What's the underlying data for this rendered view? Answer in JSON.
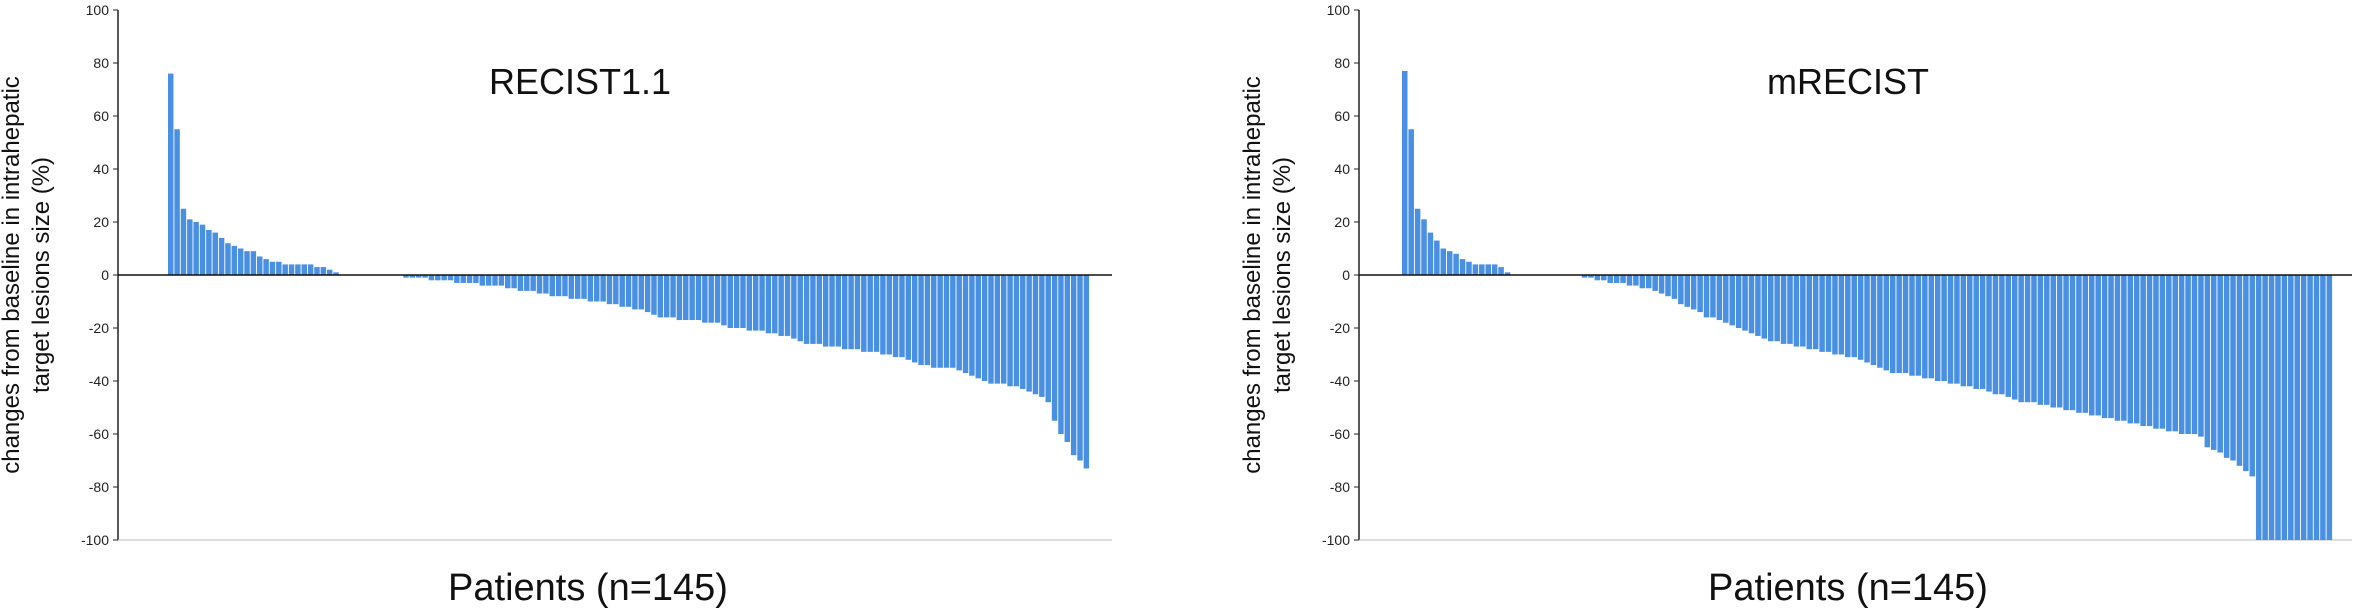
{
  "colors": {
    "bar": "#4a90e2",
    "bar_stroke": "#3a7bd5",
    "axis": "#222222",
    "baseline": "#111111"
  },
  "chart_data": [
    {
      "type": "bar",
      "title": "RECIST1.1",
      "xlabel": "Patients (n=145)",
      "ylabel_lines": [
        "changes from baseline in intrahepatic",
        "target lesions size   (%)"
      ],
      "ylim": [
        -100,
        100
      ],
      "yticks": [
        100,
        80,
        60,
        40,
        20,
        0,
        -20,
        -40,
        -60,
        -80,
        -100
      ],
      "grid": false,
      "n": 145,
      "values": [
        76,
        55,
        25,
        21,
        20,
        19,
        17,
        16,
        14,
        12,
        11,
        10,
        9,
        9,
        7,
        6,
        5,
        5,
        4,
        4,
        4,
        4,
        4,
        3,
        3,
        2,
        1,
        0,
        0,
        0,
        0,
        0,
        0,
        0,
        0,
        0,
        0,
        -1,
        -1,
        -1,
        -1,
        -2,
        -2,
        -2,
        -2,
        -3,
        -3,
        -3,
        -3,
        -4,
        -4,
        -4,
        -4,
        -5,
        -5,
        -6,
        -6,
        -6,
        -7,
        -7,
        -8,
        -8,
        -8,
        -9,
        -9,
        -9,
        -10,
        -10,
        -10,
        -11,
        -11,
        -12,
        -12,
        -13,
        -13,
        -14,
        -15,
        -16,
        -16,
        -16,
        -17,
        -17,
        -17,
        -17,
        -18,
        -18,
        -18,
        -19,
        -20,
        -20,
        -20,
        -21,
        -21,
        -21,
        -22,
        -22,
        -23,
        -23,
        -24,
        -25,
        -26,
        -26,
        -26,
        -27,
        -27,
        -27,
        -28,
        -28,
        -28,
        -29,
        -29,
        -29,
        -30,
        -30,
        -31,
        -31,
        -32,
        -33,
        -34,
        -34,
        -35,
        -35,
        -35,
        -35,
        -36,
        -37,
        -38,
        -39,
        -40,
        -41,
        -41,
        -41,
        -42,
        -42,
        -43,
        -44,
        -45,
        -46,
        -48,
        -55,
        -60,
        -63,
        -68,
        -70,
        -73
      ]
    },
    {
      "type": "bar",
      "title": "mRECIST",
      "xlabel": "Patients (n=145)",
      "ylabel_lines": [
        "changes from baseline in intrahepatic",
        "target lesions size   (%)"
      ],
      "ylim": [
        -100,
        100
      ],
      "yticks": [
        100,
        80,
        60,
        40,
        20,
        0,
        -20,
        -40,
        -60,
        -80,
        -100
      ],
      "grid": false,
      "n": 145,
      "values": [
        77,
        55,
        25,
        21,
        16,
        13,
        10,
        9,
        8,
        6,
        5,
        4,
        4,
        4,
        4,
        3,
        1,
        0,
        0,
        0,
        0,
        0,
        0,
        0,
        0,
        0,
        0,
        0,
        -1,
        -1,
        -2,
        -2,
        -3,
        -3,
        -3,
        -4,
        -4,
        -5,
        -5,
        -6,
        -7,
        -8,
        -9,
        -11,
        -12,
        -13,
        -14,
        -16,
        -16,
        -17,
        -18,
        -19,
        -20,
        -21,
        -22,
        -23,
        -24,
        -25,
        -25,
        -26,
        -26,
        -27,
        -27,
        -28,
        -28,
        -29,
        -29,
        -30,
        -30,
        -31,
        -31,
        -32,
        -33,
        -34,
        -35,
        -36,
        -37,
        -37,
        -37,
        -38,
        -38,
        -39,
        -39,
        -40,
        -40,
        -41,
        -41,
        -42,
        -42,
        -43,
        -43,
        -44,
        -45,
        -45,
        -46,
        -47,
        -48,
        -48,
        -48,
        -49,
        -49,
        -50,
        -50,
        -51,
        -51,
        -52,
        -52,
        -53,
        -53,
        -54,
        -54,
        -55,
        -55,
        -56,
        -56,
        -57,
        -57,
        -58,
        -58,
        -59,
        -59,
        -60,
        -60,
        -60,
        -61,
        -65,
        -66,
        -67,
        -69,
        -70,
        -72,
        -74,
        -76,
        -100,
        -100,
        -100,
        -100,
        -100,
        -100,
        -100,
        -100,
        -100,
        -100,
        -100,
        -100
      ]
    }
  ]
}
